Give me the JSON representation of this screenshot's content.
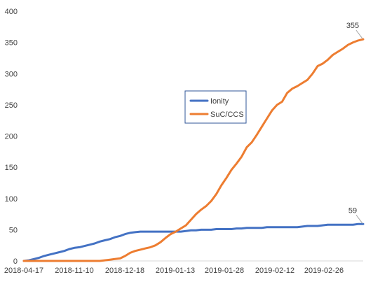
{
  "chart_data": {
    "type": "line",
    "title": "",
    "xlabel": "",
    "ylabel": "",
    "ylim": [
      0,
      400
    ],
    "yticks": [
      0,
      50,
      100,
      150,
      200,
      250,
      300,
      350,
      400
    ],
    "x_tick_labels": [
      "2018-04-17",
      "2018-11-10",
      "2018-12-18",
      "2019-01-13",
      "2019-01-28",
      "2019-02-12",
      "2019-02-26"
    ],
    "grid": false,
    "legend_position": "center",
    "series": [
      {
        "name": "Ionity",
        "color": "#4472C4",
        "end_label": "59",
        "values": [
          0,
          1,
          3,
          5,
          8,
          10,
          12,
          14,
          16,
          19,
          21,
          22,
          24,
          26,
          28,
          31,
          33,
          35,
          38,
          40,
          43,
          45,
          46,
          47,
          47,
          47,
          47,
          47,
          47,
          47,
          47,
          47,
          48,
          49,
          49,
          50,
          50,
          50,
          51,
          51,
          51,
          51,
          52,
          52,
          53,
          53,
          53,
          53,
          54,
          54,
          54,
          54,
          54,
          54,
          54,
          55,
          56,
          56,
          56,
          57,
          58,
          58,
          58,
          58,
          58,
          58,
          59,
          59
        ]
      },
      {
        "name": "SuC/CCS",
        "color": "#ED7D31",
        "end_label": "355",
        "values": [
          0,
          0,
          0,
          0,
          0,
          0,
          0,
          0,
          0,
          0,
          0,
          0,
          0,
          0,
          0,
          0,
          1,
          2,
          3,
          4,
          8,
          13,
          16,
          18,
          20,
          22,
          25,
          30,
          37,
          43,
          47,
          52,
          57,
          66,
          75,
          82,
          88,
          96,
          107,
          121,
          133,
          146,
          156,
          167,
          182,
          190,
          202,
          215,
          228,
          241,
          250,
          255,
          269,
          276,
          280,
          285,
          290,
          300,
          312,
          316,
          322,
          330,
          335,
          340,
          346,
          350,
          353,
          355
        ]
      }
    ]
  }
}
